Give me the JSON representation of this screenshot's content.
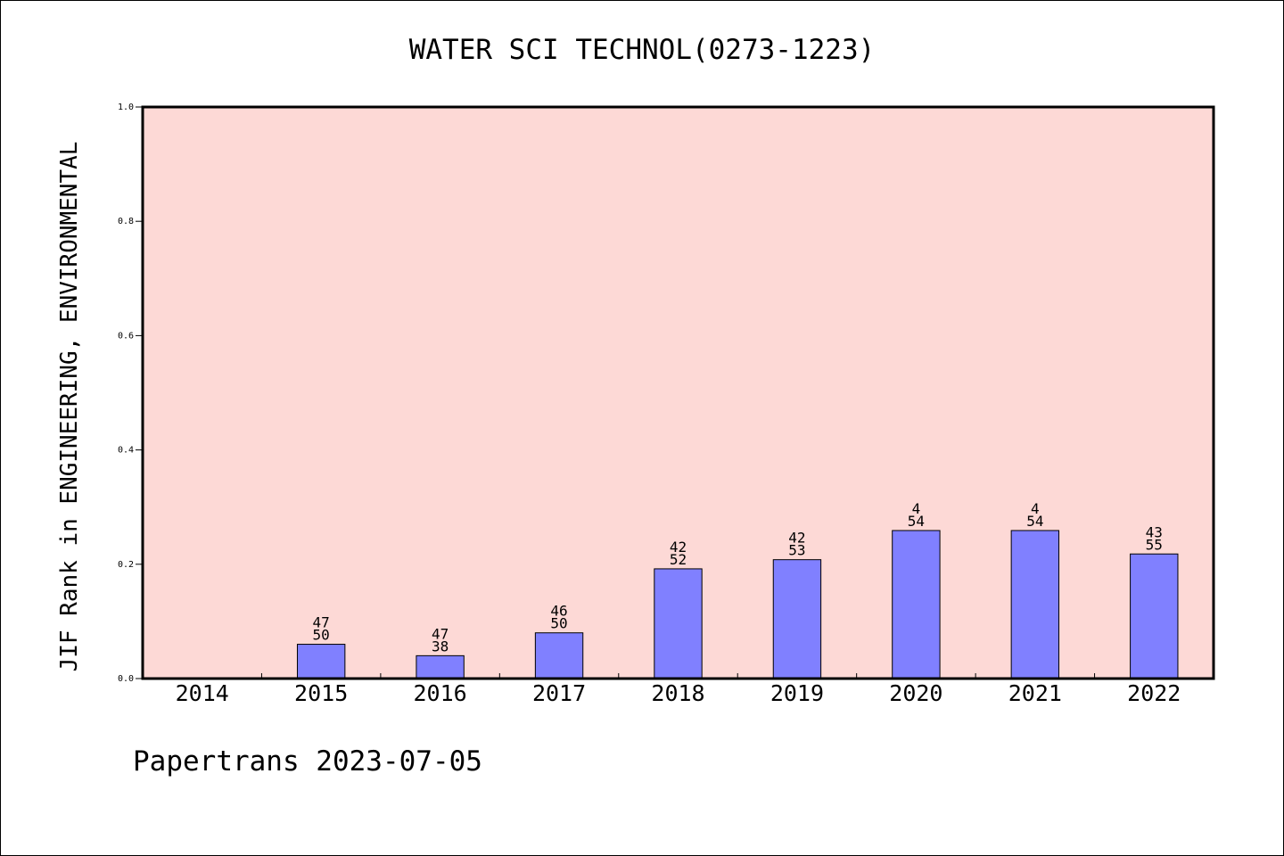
{
  "chart_data": {
    "type": "bar",
    "title": "WATER SCI TECHNOL(0273-1223)",
    "ylabel": "JIF Rank in ENGINEERING, ENVIRONMENTAL",
    "xlabel": "",
    "ylim": [
      0,
      1.0
    ],
    "yticks": [
      "0.0",
      "0.2",
      "0.4",
      "0.6",
      "0.8",
      "1.0"
    ],
    "categories": [
      "2014",
      "2015",
      "2016",
      "2017",
      "2018",
      "2019",
      "2020",
      "2021",
      "2022"
    ],
    "values": [
      null,
      0.06,
      0.04,
      0.08,
      0.192,
      0.208,
      0.259,
      0.259,
      0.218
    ],
    "labels_top": [
      "",
      "47",
      "47",
      "46",
      "42",
      "42",
      "4",
      "4",
      "43"
    ],
    "labels_bottom": [
      "",
      "50",
      "38",
      "50",
      "52",
      "53",
      "54",
      "54",
      "55"
    ],
    "grid": false,
    "colors": {
      "plot_background": "#fdd9d6",
      "bar_fill": "#8080ff",
      "bar_stroke": "#000000",
      "axis": "#000000"
    }
  },
  "footer": "Papertrans 2023-07-05"
}
